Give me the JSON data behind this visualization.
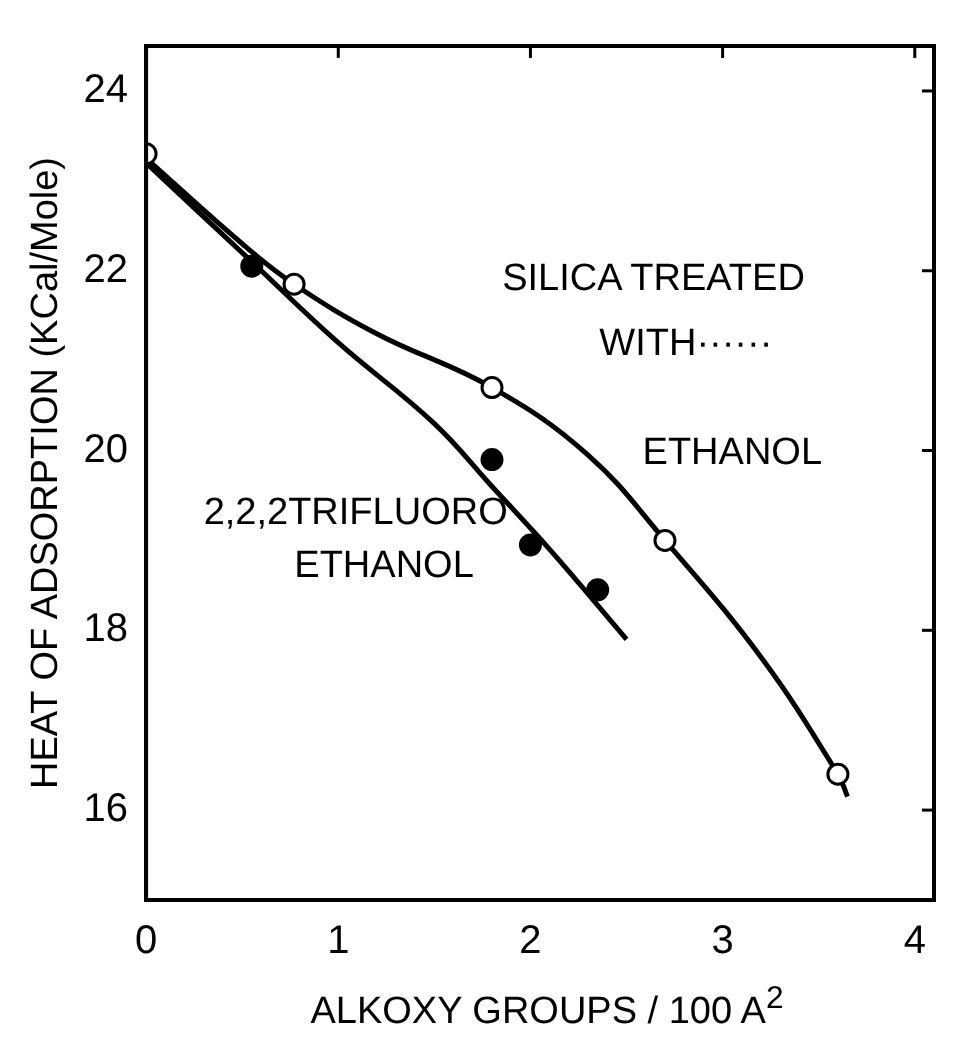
{
  "chart_data": {
    "type": "scatter",
    "xlabel": "ALKOXY GROUPS / 100 A$^{2}$",
    "ylabel": "HEAT OF ADSORPTION (KCal/Mole)",
    "xlim": [
      0,
      4.1
    ],
    "ylim": [
      15,
      24.5
    ],
    "xticks": [
      0,
      1,
      2,
      3,
      4
    ],
    "yticks": [
      16,
      18,
      20,
      22,
      24
    ],
    "grid": false,
    "legend": false,
    "marker": "circle",
    "series": [
      {
        "color": "#ffffff",
        "x": [
          0,
          0.77,
          1.8,
          2.7,
          3.6
        ],
        "values": [
          23.3,
          21.85,
          20.7,
          19.0,
          16.4
        ]
      },
      {
        "color": "#000000",
        "x": [
          0.55,
          1.8,
          2.0,
          2.35
        ],
        "values": [
          22.05,
          19.9,
          18.95,
          18.45
        ]
      },
      {
        "type": "line",
        "marker": "none",
        "color": "#000000",
        "x": [
          0,
          0.5,
          0.77,
          1.2,
          1.8,
          2.3,
          2.7,
          3.2,
          3.6,
          3.65
        ],
        "values": [
          23.25,
          22.3,
          21.85,
          21.3,
          20.7,
          19.95,
          19.0,
          17.7,
          16.4,
          16.15
        ]
      },
      {
        "type": "line",
        "marker": "none",
        "color": "#000000",
        "x": [
          0,
          0.55,
          1,
          1.5,
          1.8,
          2.1,
          2.5
        ],
        "values": [
          23.2,
          22.1,
          21.2,
          20.3,
          19.6,
          18.9,
          17.9
        ]
      }
    ],
    "annotations": [
      "SILICA TREATED",
      "WITH······",
      "ETHANOL",
      "2,2,2TRIFLUORO",
      "ETHANOL"
    ]
  }
}
